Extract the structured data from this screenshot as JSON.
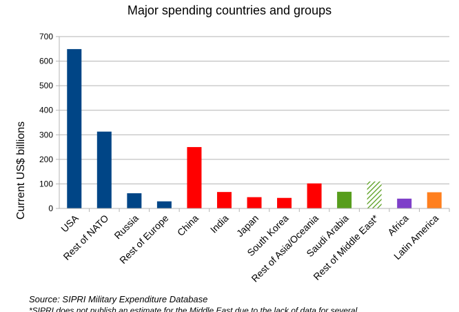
{
  "chart_data": {
    "type": "bar",
    "title": "Major spending countries and groups",
    "ylabel": "Current US$ billions",
    "xlabel": "",
    "ylim": [
      0,
      700
    ],
    "yticks": [
      0,
      100,
      200,
      300,
      400,
      500,
      600,
      700
    ],
    "grid": true,
    "categories": [
      "USA",
      "Rest of NATO",
      "Russia",
      "Rest of Europe",
      "China",
      "India",
      "Japan",
      "South Korea",
      "Rest of Asia/Oceania",
      "Saudi Arabia",
      "Rest of Middle East*",
      "Africa",
      "Latin America"
    ],
    "values": [
      649,
      313,
      62,
      29,
      250,
      67,
      46,
      43,
      102,
      68,
      110,
      40,
      66
    ],
    "colors": [
      "#004586",
      "#004586",
      "#004586",
      "#004586",
      "#ff0000",
      "#ff0000",
      "#ff0000",
      "#ff0000",
      "#ff0000",
      "#579d1c",
      "#579d1c",
      "#7e3fc9",
      "#ff7f1e"
    ],
    "hatched": [
      false,
      false,
      false,
      false,
      false,
      false,
      false,
      false,
      false,
      false,
      true,
      false,
      false
    ]
  },
  "notes": {
    "source": "Source: SIPRI Military Expenditure Database",
    "footnote": "*SIPRI does not publish an estimate for the Middle East due to the lack of data for several"
  }
}
